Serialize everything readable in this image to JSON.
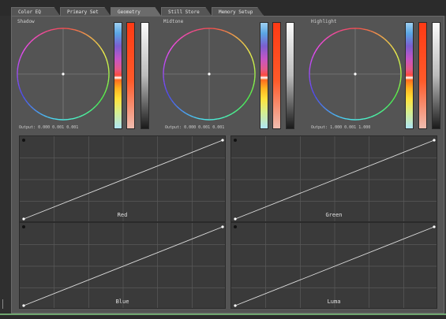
{
  "tabs": [
    "Color EQ",
    "Primary Set",
    "Geometry",
    "Still Store",
    "Memory Setup"
  ],
  "active_tab": 2,
  "wheels": [
    {
      "label": "Shadow",
      "output": "Output: 0.000 0.001 0.001"
    },
    {
      "label": "Midtone",
      "output": "Output: 0.000 0.001 0.001"
    },
    {
      "label": "Highlight",
      "output": "Output: 1.000 0.001 1.000"
    }
  ],
  "curves": [
    {
      "label": "Red"
    },
    {
      "label": "Green"
    },
    {
      "label": "Blue"
    },
    {
      "label": "Luma"
    }
  ],
  "colors": {
    "panel_bg": "#545454",
    "curve_bg": "#3a3a3a",
    "grid": "#5a5a5a",
    "line": "#dcdcdc",
    "status_green": "#6fa66f"
  }
}
